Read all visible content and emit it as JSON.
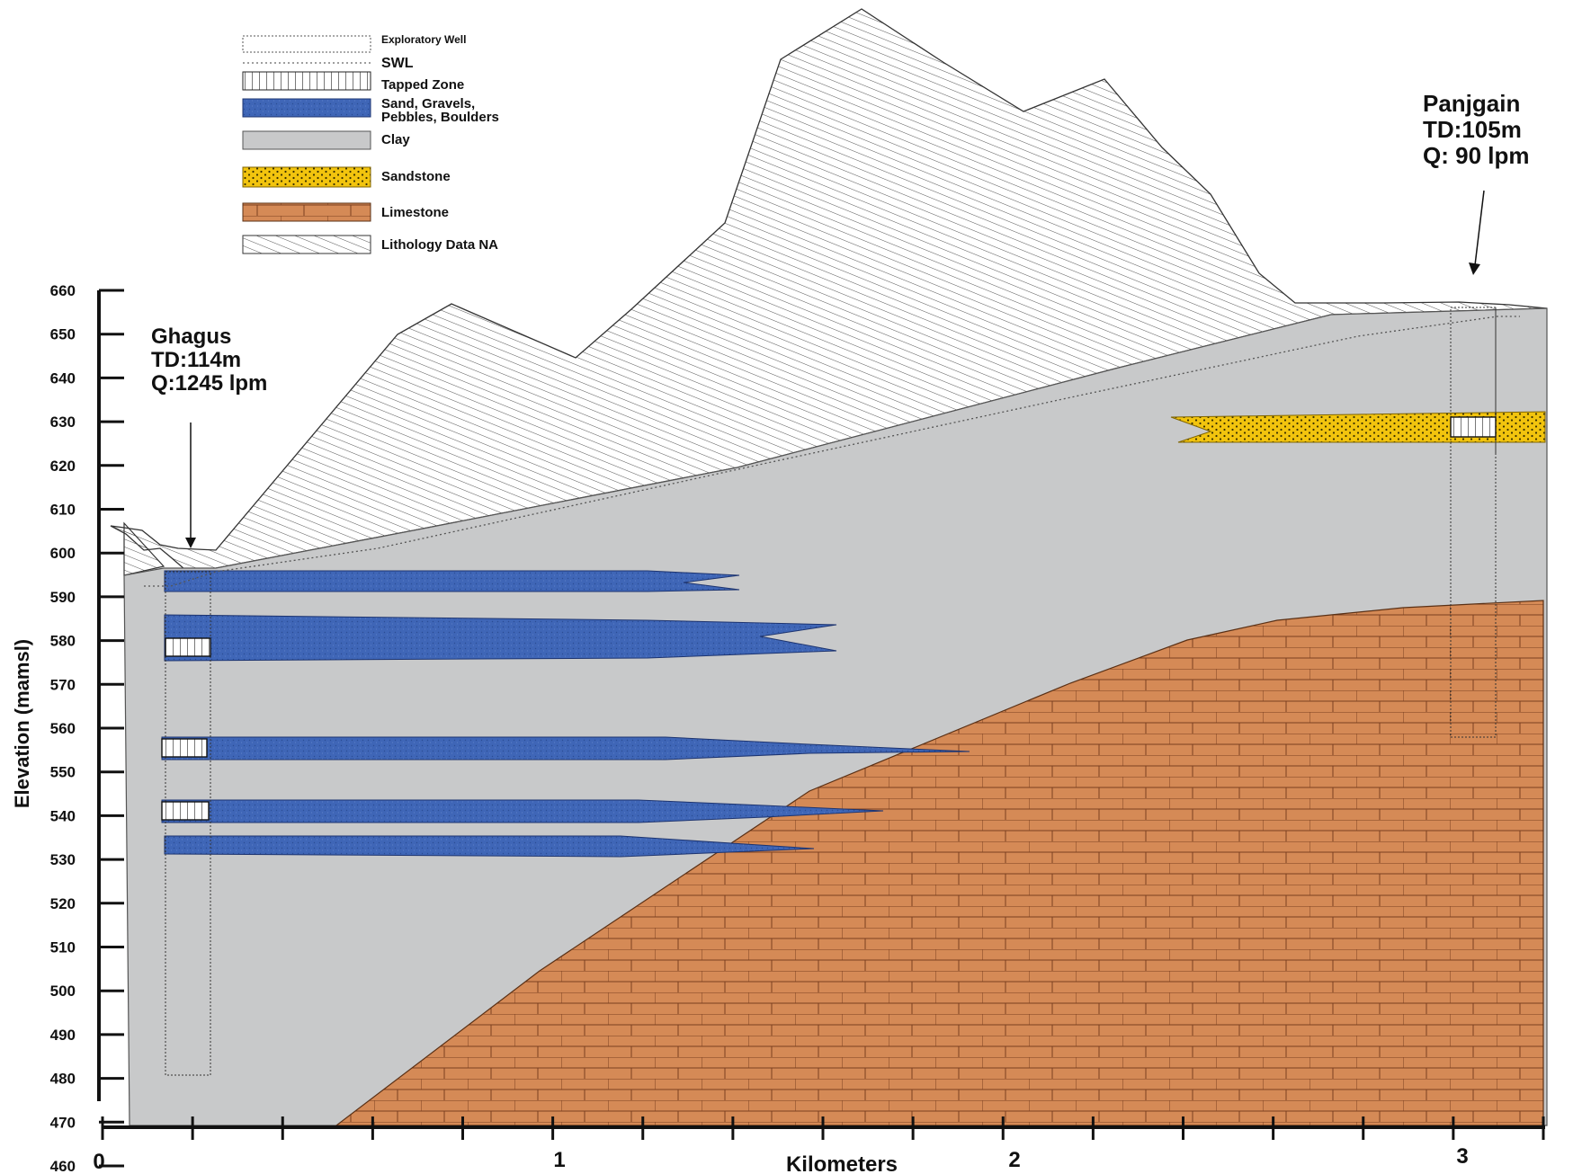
{
  "legend": {
    "exploratory_well": "Exploratory Well",
    "swl": "SWL",
    "tapped_zone": "Tapped Zone",
    "sand_line1": "Sand, Gravels,",
    "sand_line2": "Pebbles, Boulders",
    "clay": "Clay",
    "sandstone": "Sandstone",
    "limestone": "Limestone",
    "lithology_na": "Lithology Data NA"
  },
  "wells": {
    "ghagus": {
      "name": "Ghagus",
      "td": "TD:114m",
      "q": "Q:1245 lpm"
    },
    "panjgain": {
      "name": "Panjgain",
      "td": "TD:105m",
      "q": "Q: 90 lpm"
    }
  },
  "axes": {
    "y_label": "Elevation (mamsl)",
    "x_label": "Kilometers",
    "y_ticks": [
      "660",
      "650",
      "640",
      "630",
      "620",
      "610",
      "600",
      "590",
      "580",
      "570",
      "560",
      "550",
      "540",
      "530",
      "520",
      "510",
      "500",
      "490",
      "480",
      "470",
      "460"
    ],
    "x_ticks": [
      "0",
      "1",
      "2",
      "3"
    ]
  },
  "colors": {
    "clay": "#c8c9ca",
    "sand": "#3f66b7",
    "sandstone": "#f2c40e",
    "limestone": "#d58a56",
    "hatch": "#444444"
  }
}
